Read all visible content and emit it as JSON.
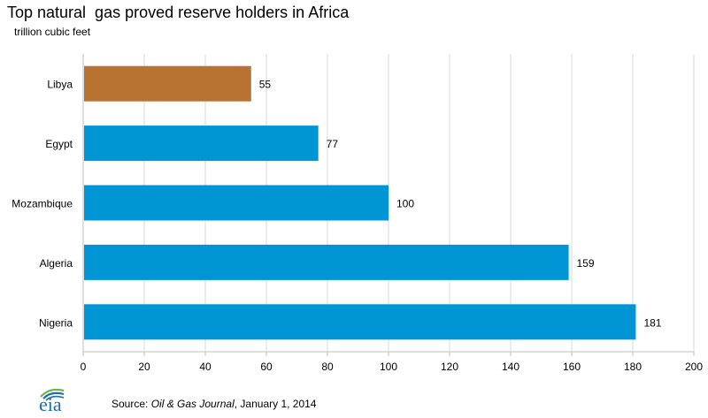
{
  "chart_data": {
    "type": "bar",
    "orientation": "horizontal",
    "title": "Top natural  gas proved reserve holders in Africa",
    "units": "trillion  cubic feet",
    "categories": [
      "Libya",
      "Egypt",
      "Mozambique",
      "Algeria",
      "Nigeria"
    ],
    "values": [
      55,
      77,
      100,
      159,
      181
    ],
    "bar_colors": [
      "#B87333",
      "#0096D6",
      "#0096D6",
      "#0096D6",
      "#0096D6"
    ],
    "xlim": [
      0,
      200
    ],
    "xticks": [
      0,
      20,
      40,
      60,
      80,
      100,
      120,
      140,
      160,
      180,
      200
    ],
    "grid": "vertical",
    "xlabel": "",
    "ylabel": ""
  },
  "footer": {
    "source_prefix": "Source: ",
    "source_italic": "Oil & Gas Journal",
    "source_suffix": ", January 1, 2014",
    "logo_text": "eia",
    "logo_icon": "eia-logo-icon"
  },
  "colors": {
    "grid": "#D9D9D9",
    "axis": "#BFBFBF",
    "logo_blue": "#1A6EB5",
    "logo_green": "#6DB33F"
  }
}
